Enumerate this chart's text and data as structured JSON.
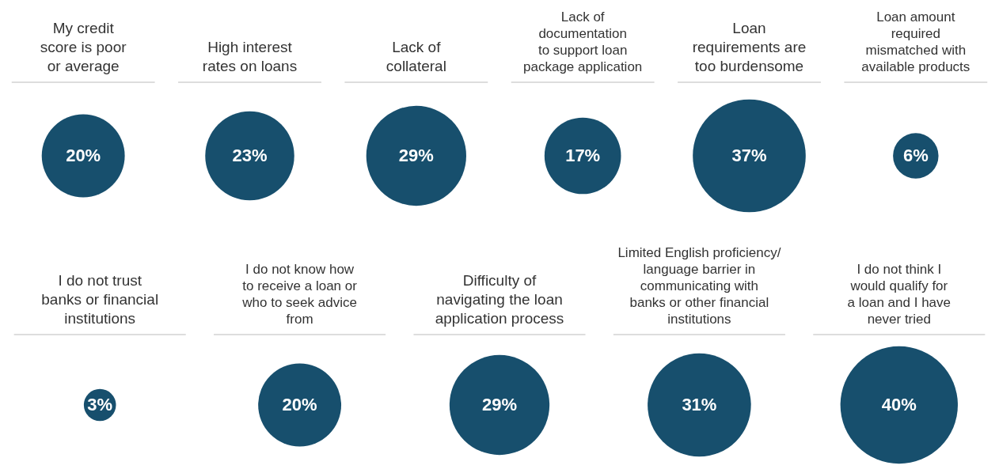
{
  "chart_data": [
    {
      "type": "other",
      "categories": [
        "My credit\nscore is poor\nor average",
        "High interest\nrates on loans",
        "Lack of\ncollateral",
        "Lack of\ndocumentation\nto support loan\npackage application",
        "Loan\nrequirements are\ntoo burdensome",
        "Loan amount\nrequired\nmismatched with\navailable products"
      ],
      "values": [
        20,
        23,
        29,
        17,
        37,
        6
      ],
      "value_labels": [
        "20%",
        "23%",
        "29%",
        "17%",
        "37%",
        "6%"
      ],
      "color": "#174f6d"
    },
    {
      "type": "other",
      "categories": [
        "I do not trust\nbanks or financial\ninstitutions",
        "I do not know how\nto receive a loan or\nwho to seek advice\nfrom",
        "Difficulty of\nnavigating the loan\napplication process",
        "Limited English proficiency/\nlanguage barrier in\ncommunicating with\nbanks or other financial\ninstitutions",
        "I do not think I\nwould qualify for\na loan and I have\nnever tried"
      ],
      "values": [
        3,
        20,
        29,
        31,
        40
      ],
      "value_labels": [
        "3%",
        "20%",
        "29%",
        "31%",
        "40%"
      ],
      "color": "#174f6d"
    }
  ]
}
